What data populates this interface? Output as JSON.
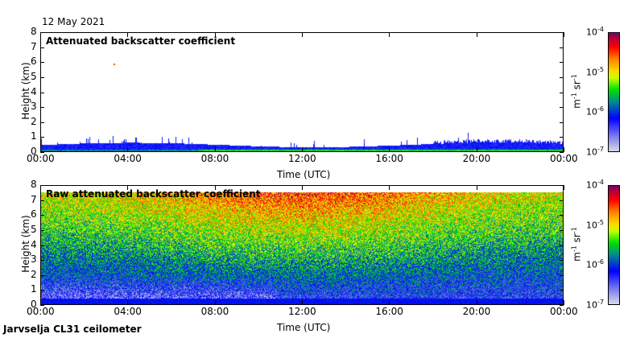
{
  "date": "12 May 2021",
  "footer": "Jarvselja CL31 ceilometer",
  "chart_data": [
    {
      "type": "heatmap",
      "title": "Attenuated backscatter coefficient",
      "xlabel": "Time (UTC)",
      "ylabel": "Height (km)",
      "xticks": [
        "00:00",
        "04:00",
        "08:00",
        "12:00",
        "16:00",
        "20:00",
        "00:00"
      ],
      "yticks": [
        "0",
        "1",
        "2",
        "3",
        "4",
        "5",
        "6",
        "7",
        "8"
      ],
      "ylim": [
        0,
        8
      ],
      "description_values": {
        "boundary_layer_top_km": 0.5
      },
      "colorbar": {
        "label": "m-1 sr-1",
        "scale": "log",
        "range": [
          1e-07,
          0.0001
        ],
        "ticks": [
          "-7",
          "-6",
          "-5",
          "-4"
        ]
      }
    },
    {
      "type": "heatmap",
      "title": "Raw attenuated backscatter coefficient",
      "xlabel": "Time (UTC)",
      "ylabel": "Height (km)",
      "xticks": [
        "00:00",
        "04:00",
        "08:00",
        "12:00",
        "16:00",
        "20:00",
        "00:00"
      ],
      "yticks": [
        "0",
        "1",
        "2",
        "3",
        "4",
        "5",
        "6",
        "7",
        "8"
      ],
      "ylim": [
        0,
        8
      ],
      "description_values": {
        "data_top_km": 7.6
      },
      "colorbar": {
        "label": "m-1 sr-1",
        "scale": "log",
        "range": [
          1e-07,
          0.0001
        ],
        "ticks": [
          "-7",
          "-6",
          "-5",
          "-4"
        ]
      }
    }
  ],
  "colorbar_unit": {
    "base1": "m",
    "exp1": "-1",
    "base2": " sr",
    "exp2": "-1"
  }
}
